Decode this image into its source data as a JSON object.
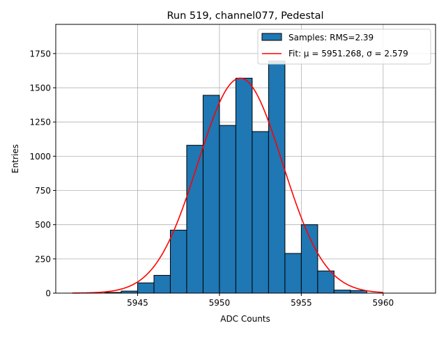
{
  "chart_data": {
    "type": "bar",
    "title": "Run 519, channel077, Pedestal",
    "xlabel": "ADC Counts",
    "ylabel": "Entries",
    "xlim": [
      5940.0,
      5963.2
    ],
    "ylim": [
      0,
      1963
    ],
    "grid": true,
    "legend_placement": "top-right",
    "x_ticks": [
      5945,
      5950,
      5955,
      5960
    ],
    "y_ticks": [
      0,
      250,
      500,
      750,
      1000,
      1250,
      1500,
      1750
    ],
    "bin_edges": [
      5943,
      5944,
      5945,
      5946,
      5947,
      5948,
      5949,
      5950,
      5951,
      5952,
      5953,
      5954,
      5955,
      5956,
      5957,
      5958,
      5959
    ],
    "series": [
      {
        "name": "Samples: RMS=2.39",
        "type": "histogram",
        "color": "#1f77b4",
        "values": [
          5,
          15,
          75,
          130,
          460,
          1080,
          1445,
          1225,
          1570,
          1180,
          1695,
          290,
          500,
          162,
          22,
          19
        ]
      },
      {
        "name": "Fit: μ = 5951.268, σ = 2.579",
        "type": "line",
        "color": "#ff0000",
        "mu": 5951.268,
        "sigma": 2.579,
        "peak": 1570,
        "x_range": [
          5941,
          5960
        ]
      }
    ]
  }
}
